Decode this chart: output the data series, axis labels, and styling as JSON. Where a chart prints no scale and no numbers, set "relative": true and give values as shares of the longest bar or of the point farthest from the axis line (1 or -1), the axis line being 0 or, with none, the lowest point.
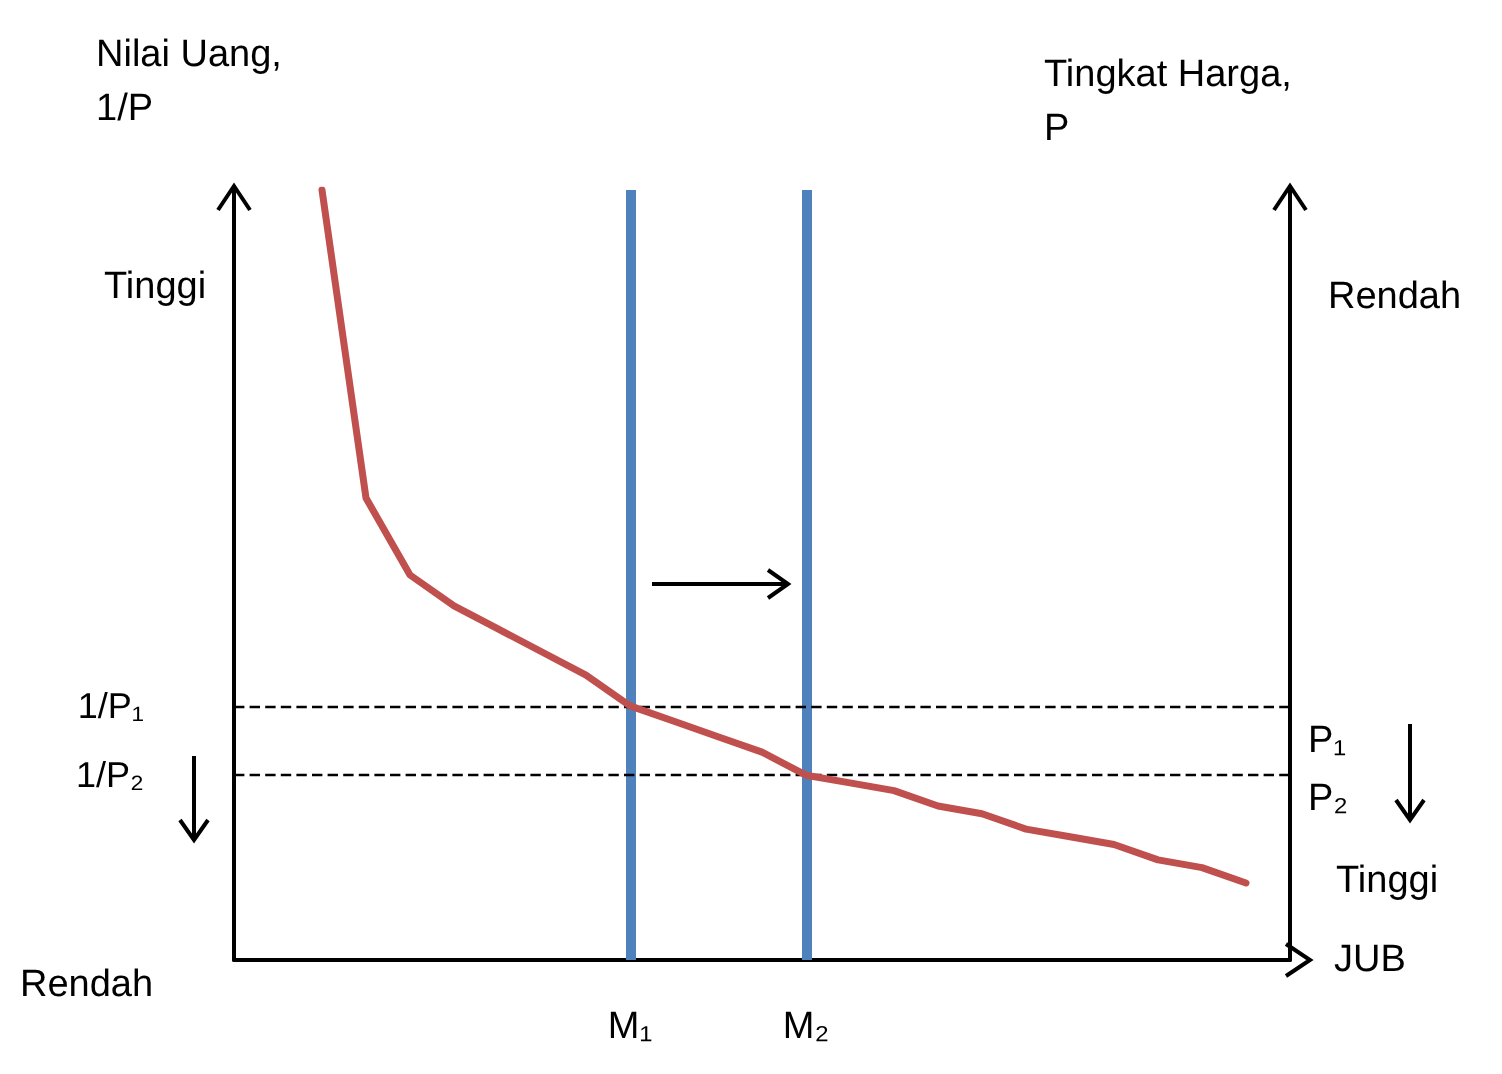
{
  "chart_data": {
    "type": "line",
    "relative": true,
    "xlabel": "JUB",
    "ylabel": "Nilai Uang,\n1/P",
    "y2label": "Tingkat Harga,\nP",
    "categories": [
      null,
      null,
      null,
      null,
      null,
      null,
      null,
      null,
      null,
      "M₁",
      null,
      null,
      null,
      "M₂",
      null,
      null,
      null,
      null,
      null,
      null,
      null,
      null,
      null,
      null,
      null
    ],
    "series": [
      {
        "color": "#c0504d",
        "values": [
          null,
          null,
          1.0,
          0.6,
          0.5,
          0.46,
          0.43,
          0.4,
          0.37,
          0.33,
          0.31,
          0.29,
          0.27,
          0.24,
          0.23,
          0.22,
          0.2,
          0.19,
          0.17,
          0.16,
          0.15,
          0.13,
          0.12,
          0.1,
          null
        ]
      }
    ],
    "ref_lines": [
      {
        "axis": "x",
        "value": "M₁",
        "color": "#4f81bd",
        "line_style": "solid"
      },
      {
        "axis": "x",
        "value": "M₂",
        "color": "#4f81bd",
        "line_style": "solid"
      },
      {
        "axis": "y",
        "value": 0.33,
        "label": "1/P₁",
        "color": "#000000",
        "line_style": "dashed"
      },
      {
        "axis": "y",
        "value": 0.24,
        "label": "1/P₂",
        "color": "#000000",
        "line_style": "dashed"
      }
    ],
    "annotations": [
      "Tinggi",
      "Rendah",
      "Rendah",
      "Tinggi",
      "P₁",
      "P₂"
    ],
    "marker": "none",
    "line_style": "solid",
    "grid": false,
    "tick_labels": "x"
  }
}
